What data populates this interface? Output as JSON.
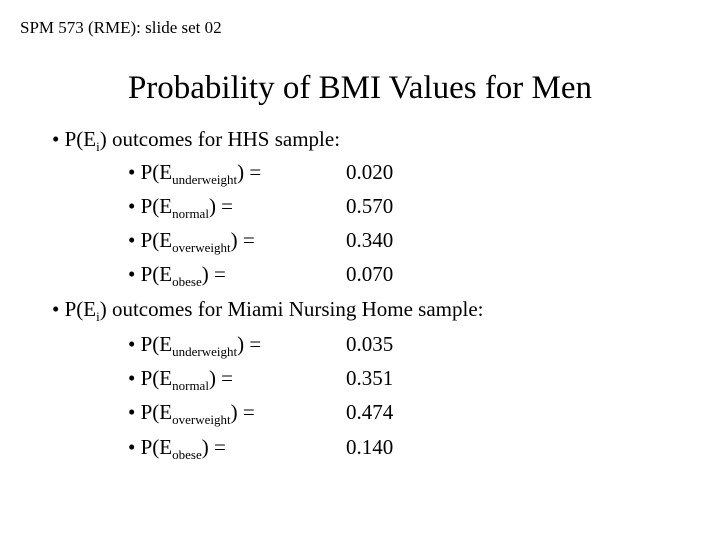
{
  "header": "SPM 573 (RME): slide set 02",
  "title": "Probability of BMI Values for Men",
  "sections": [
    {
      "heading_prefix": "• P(E",
      "heading_sub": "i",
      "heading_suffix": ") outcomes for HHS sample:",
      "items": [
        {
          "prefix": "• P(E",
          "sub": "underweight",
          "suffix": ") =",
          "value": "0.020"
        },
        {
          "prefix": "• P(E",
          "sub": "normal",
          "suffix": ") =",
          "value": "0.570"
        },
        {
          "prefix": "• P(E",
          "sub": "overweight",
          "suffix": ") =",
          "value": "0.340"
        },
        {
          "prefix": "• P(E",
          "sub": "obese",
          "suffix": ") =",
          "value": "0.070"
        }
      ]
    },
    {
      "heading_prefix": "• P(E",
      "heading_sub": "i",
      "heading_suffix": ") outcomes for Miami Nursing Home sample:",
      "items": [
        {
          "prefix": "• P(E",
          "sub": "underweight",
          "suffix": ") =",
          "value": "0.035"
        },
        {
          "prefix": "• P(E",
          "sub": "normal",
          "suffix": ") =",
          "value": "0.351"
        },
        {
          "prefix": "• P(E",
          "sub": "overweight",
          "suffix": ") =",
          "value": "0.474"
        },
        {
          "prefix": "• P(E",
          "sub": "obese",
          "suffix": ") =",
          "value": "0.140"
        }
      ]
    }
  ]
}
